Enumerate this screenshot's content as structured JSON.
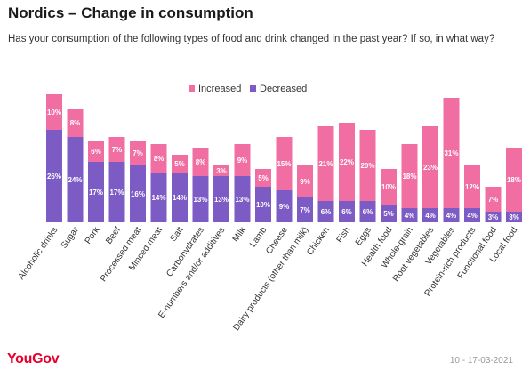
{
  "title": "Nordics – Change in consumption",
  "subtitle": "Has your consumption of the following types of food and drink changed in the past year? If so, in what way?",
  "footer": {
    "brand": "YouGov",
    "date": "10 - 17-03-2021"
  },
  "colors": {
    "increased": "#f06ea2",
    "decreased": "#7d5bc4"
  },
  "chart_data": {
    "type": "bar",
    "stacked": true,
    "legend_position": "top-right",
    "grid": false,
    "ylim": [
      0,
      40
    ],
    "categories": [
      "Alcoholic drinks",
      "Sugar",
      "Pork",
      "Beef",
      "Processed meat",
      "Minced meat",
      "Salt",
      "Carbohydrates",
      "E-numbers and/or additives",
      "Milk",
      "Lamb",
      "Cheese",
      "Dairy products (other than milk)",
      "Chicken",
      "Fish",
      "Eggs",
      "Health food",
      "Whole-grain",
      "Root vegetables",
      "Vegetables",
      "Protein-rich products",
      "Functional food",
      "Local food"
    ],
    "series": [
      {
        "name": "Decreased",
        "values": [
          26,
          24,
          17,
          17,
          16,
          14,
          14,
          13,
          13,
          13,
          10,
          9,
          7,
          6,
          6,
          6,
          5,
          4,
          4,
          4,
          4,
          3,
          3
        ]
      },
      {
        "name": "Increased",
        "values": [
          10,
          8,
          6,
          7,
          7,
          8,
          5,
          8,
          3,
          9,
          5,
          15,
          9,
          21,
          22,
          20,
          10,
          18,
          23,
          31,
          12,
          7,
          18
        ]
      }
    ]
  }
}
